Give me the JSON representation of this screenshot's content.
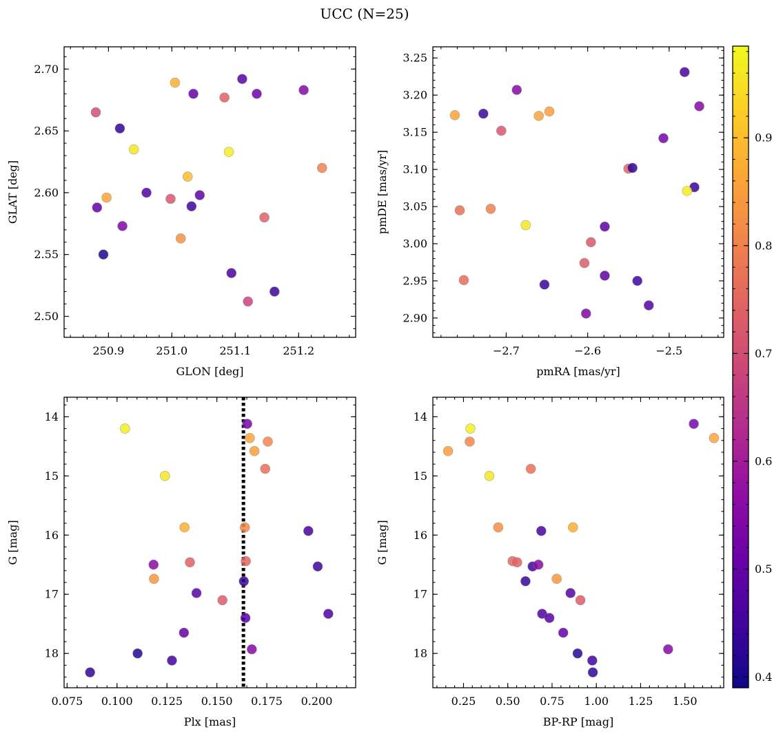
{
  "title": "UCC (N=25)",
  "colorbar": {
    "ticks": [
      "0.4",
      "0.5",
      "0.6",
      "0.7",
      "0.8",
      "0.9"
    ],
    "range": [
      0.39,
      0.985
    ],
    "colormap": "plasma"
  },
  "chart_data": [
    {
      "type": "scatter",
      "xlabel": "GLON [deg]",
      "ylabel": "GLAT [deg]",
      "xlim": [
        250.83,
        251.29
      ],
      "ylim": [
        2.483,
        2.718
      ],
      "xticks": [
        "250.9",
        "251.0",
        "251.1",
        "251.2"
      ],
      "yticks": [
        "2.50",
        "2.55",
        "2.60",
        "2.65",
        "2.70"
      ],
      "points": [
        {
          "x": 250.88,
          "y": 2.665,
          "c": 0.7
        },
        {
          "x": 250.918,
          "y": 2.652,
          "c": 0.43
        },
        {
          "x": 250.94,
          "y": 2.635,
          "c": 0.96
        },
        {
          "x": 251.005,
          "y": 2.689,
          "c": 0.88
        },
        {
          "x": 251.034,
          "y": 2.68,
          "c": 0.5
        },
        {
          "x": 251.083,
          "y": 2.677,
          "c": 0.74
        },
        {
          "x": 251.111,
          "y": 2.692,
          "c": 0.48
        },
        {
          "x": 251.134,
          "y": 2.68,
          "c": 0.52
        },
        {
          "x": 251.208,
          "y": 2.683,
          "c": 0.55
        },
        {
          "x": 251.025,
          "y": 2.613,
          "c": 0.9
        },
        {
          "x": 251.09,
          "y": 2.633,
          "c": 0.97
        },
        {
          "x": 251.237,
          "y": 2.62,
          "c": 0.8
        },
        {
          "x": 250.882,
          "y": 2.588,
          "c": 0.5
        },
        {
          "x": 250.897,
          "y": 2.596,
          "c": 0.86
        },
        {
          "x": 250.96,
          "y": 2.6,
          "c": 0.47
        },
        {
          "x": 250.998,
          "y": 2.595,
          "c": 0.72
        },
        {
          "x": 251.031,
          "y": 2.589,
          "c": 0.45
        },
        {
          "x": 251.044,
          "y": 2.598,
          "c": 0.49
        },
        {
          "x": 250.922,
          "y": 2.573,
          "c": 0.54
        },
        {
          "x": 251.014,
          "y": 2.563,
          "c": 0.83
        },
        {
          "x": 251.146,
          "y": 2.58,
          "c": 0.74
        },
        {
          "x": 250.892,
          "y": 2.55,
          "c": 0.41
        },
        {
          "x": 251.094,
          "y": 2.535,
          "c": 0.46
        },
        {
          "x": 251.12,
          "y": 2.512,
          "c": 0.68
        },
        {
          "x": 251.162,
          "y": 2.52,
          "c": 0.44
        }
      ]
    },
    {
      "type": "scatter",
      "xlabel": "pmRA [mas/yr]",
      "ylabel": "pmDE [mas/yr]",
      "xlim": [
        -2.79,
        -2.433
      ],
      "ylim": [
        2.874,
        3.265
      ],
      "xticks": [
        "−2.7",
        "−2.6",
        "−2.5"
      ],
      "yticks": [
        "2.90",
        "2.95",
        "3.00",
        "3.05",
        "3.10",
        "3.15",
        "3.20",
        "3.25"
      ],
      "points": [
        {
          "x": -2.763,
          "y": 3.173,
          "c": 0.86
        },
        {
          "x": -2.728,
          "y": 3.175,
          "c": 0.44
        },
        {
          "x": -2.687,
          "y": 3.207,
          "c": 0.55
        },
        {
          "x": -2.706,
          "y": 3.152,
          "c": 0.72
        },
        {
          "x": -2.66,
          "y": 3.172,
          "c": 0.86
        },
        {
          "x": -2.647,
          "y": 3.178,
          "c": 0.85
        },
        {
          "x": -2.481,
          "y": 3.231,
          "c": 0.46
        },
        {
          "x": -2.463,
          "y": 3.185,
          "c": 0.55
        },
        {
          "x": -2.507,
          "y": 3.142,
          "c": 0.53
        },
        {
          "x": -2.55,
          "y": 3.101,
          "c": 0.75
        },
        {
          "x": -2.545,
          "y": 3.102,
          "c": 0.43
        },
        {
          "x": -2.469,
          "y": 3.076,
          "c": 0.44
        },
        {
          "x": -2.478,
          "y": 3.071,
          "c": 0.97
        },
        {
          "x": -2.757,
          "y": 3.045,
          "c": 0.77
        },
        {
          "x": -2.719,
          "y": 3.047,
          "c": 0.8
        },
        {
          "x": -2.676,
          "y": 3.025,
          "c": 0.96
        },
        {
          "x": -2.579,
          "y": 3.023,
          "c": 0.49
        },
        {
          "x": -2.596,
          "y": 3.002,
          "c": 0.72
        },
        {
          "x": -2.604,
          "y": 2.974,
          "c": 0.73
        },
        {
          "x": -2.752,
          "y": 2.951,
          "c": 0.76
        },
        {
          "x": -2.653,
          "y": 2.945,
          "c": 0.44
        },
        {
          "x": -2.579,
          "y": 2.957,
          "c": 0.49
        },
        {
          "x": -2.539,
          "y": 2.95,
          "c": 0.45
        },
        {
          "x": -2.525,
          "y": 2.917,
          "c": 0.47
        },
        {
          "x": -2.602,
          "y": 2.906,
          "c": 0.54
        }
      ]
    },
    {
      "type": "scatter",
      "xlabel": "Plx [mas]",
      "ylabel": "G [mag]",
      "xlim": [
        0.0735,
        0.2195
      ],
      "ylim": [
        18.58,
        13.67
      ],
      "y_inverted": true,
      "xticks": [
        "0.075",
        "0.100",
        "0.125",
        "0.150",
        "0.175",
        "0.200"
      ],
      "yticks": [
        "14",
        "15",
        "16",
        "17",
        "18"
      ],
      "vline": {
        "x": 0.1633,
        "style": "dotted",
        "color": "#000000"
      },
      "points": [
        {
          "x": 0.104,
          "y": 14.2,
          "c": 0.97
        },
        {
          "x": 0.1652,
          "y": 14.12,
          "c": 0.53
        },
        {
          "x": 0.1665,
          "y": 14.36,
          "c": 0.86
        },
        {
          "x": 0.1755,
          "y": 14.42,
          "c": 0.81
        },
        {
          "x": 0.1688,
          "y": 14.58,
          "c": 0.85
        },
        {
          "x": 0.124,
          "y": 15.0,
          "c": 0.96
        },
        {
          "x": 0.1742,
          "y": 14.88,
          "c": 0.77
        },
        {
          "x": 0.1338,
          "y": 15.87,
          "c": 0.88
        },
        {
          "x": 0.164,
          "y": 15.87,
          "c": 0.82
        },
        {
          "x": 0.1958,
          "y": 15.93,
          "c": 0.46
        },
        {
          "x": 0.1183,
          "y": 16.5,
          "c": 0.56
        },
        {
          "x": 0.1365,
          "y": 16.46,
          "c": 0.74
        },
        {
          "x": 0.1645,
          "y": 16.44,
          "c": 0.75
        },
        {
          "x": 0.2005,
          "y": 16.53,
          "c": 0.45
        },
        {
          "x": 0.1185,
          "y": 16.74,
          "c": 0.84
        },
        {
          "x": 0.1635,
          "y": 16.78,
          "c": 0.44
        },
        {
          "x": 0.1398,
          "y": 16.98,
          "c": 0.48
        },
        {
          "x": 0.1528,
          "y": 17.1,
          "c": 0.73
        },
        {
          "x": 0.1643,
          "y": 17.4,
          "c": 0.48
        },
        {
          "x": 0.2058,
          "y": 17.33,
          "c": 0.47
        },
        {
          "x": 0.1335,
          "y": 17.65,
          "c": 0.5
        },
        {
          "x": 0.1675,
          "y": 17.93,
          "c": 0.55
        },
        {
          "x": 0.1103,
          "y": 18.0,
          "c": 0.42
        },
        {
          "x": 0.1275,
          "y": 18.12,
          "c": 0.45
        },
        {
          "x": 0.0865,
          "y": 18.32,
          "c": 0.43
        }
      ]
    },
    {
      "type": "scatter",
      "xlabel": "BP-RP [mag]",
      "ylabel": "G [mag]",
      "xlim": [
        0.077,
        1.719
      ],
      "ylim": [
        18.58,
        13.67
      ],
      "y_inverted": true,
      "xticks": [
        "0.25",
        "0.50",
        "0.75",
        "1.00",
        "1.25",
        "1.50"
      ],
      "yticks": [
        "14",
        "15",
        "16",
        "17",
        "18"
      ],
      "points": [
        {
          "x": 0.289,
          "y": 14.2,
          "c": 0.97
        },
        {
          "x": 1.55,
          "y": 14.12,
          "c": 0.53
        },
        {
          "x": 0.285,
          "y": 14.42,
          "c": 0.81
        },
        {
          "x": 1.664,
          "y": 14.36,
          "c": 0.86
        },
        {
          "x": 0.163,
          "y": 14.58,
          "c": 0.85
        },
        {
          "x": 0.396,
          "y": 15.0,
          "c": 0.96
        },
        {
          "x": 0.63,
          "y": 14.88,
          "c": 0.77
        },
        {
          "x": 0.446,
          "y": 15.87,
          "c": 0.82
        },
        {
          "x": 0.689,
          "y": 15.93,
          "c": 0.46
        },
        {
          "x": 0.868,
          "y": 15.87,
          "c": 0.88
        },
        {
          "x": 0.527,
          "y": 16.44,
          "c": 0.75
        },
        {
          "x": 0.553,
          "y": 16.46,
          "c": 0.74
        },
        {
          "x": 0.64,
          "y": 16.53,
          "c": 0.45
        },
        {
          "x": 0.673,
          "y": 16.5,
          "c": 0.56
        },
        {
          "x": 0.6,
          "y": 16.78,
          "c": 0.44
        },
        {
          "x": 0.776,
          "y": 16.74,
          "c": 0.84
        },
        {
          "x": 0.854,
          "y": 16.98,
          "c": 0.48
        },
        {
          "x": 0.91,
          "y": 17.1,
          "c": 0.73
        },
        {
          "x": 0.694,
          "y": 17.33,
          "c": 0.47
        },
        {
          "x": 0.735,
          "y": 17.4,
          "c": 0.48
        },
        {
          "x": 0.813,
          "y": 17.65,
          "c": 0.5
        },
        {
          "x": 1.405,
          "y": 17.93,
          "c": 0.55
        },
        {
          "x": 0.894,
          "y": 18.0,
          "c": 0.42
        },
        {
          "x": 0.977,
          "y": 18.12,
          "c": 0.45
        },
        {
          "x": 0.98,
          "y": 18.32,
          "c": 0.43
        }
      ]
    }
  ]
}
